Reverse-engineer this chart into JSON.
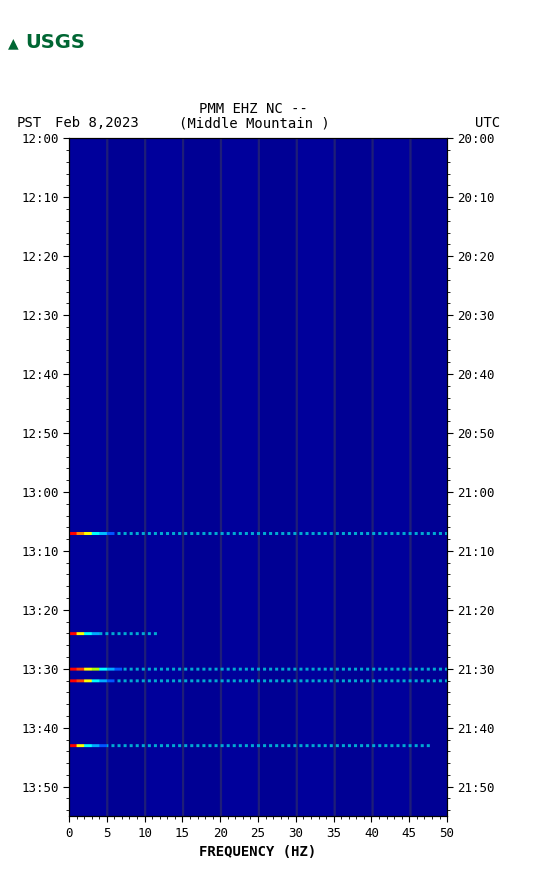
{
  "title_line1": "PMM EHZ NC --",
  "title_line2": "(Middle Mountain )",
  "left_label": "PST",
  "right_label": "UTC",
  "date_label": "Feb 8,2023",
  "xlabel": "FREQUENCY (HZ)",
  "freq_min": 0,
  "freq_max": 50,
  "bg_navy": [
    0,
    0,
    140
  ],
  "bg_navy2": [
    0,
    0,
    160
  ],
  "strip_color": [
    0,
    0,
    180
  ],
  "fig_bg": "#ffffff",
  "ytick_pst": [
    "12:00",
    "12:10",
    "12:20",
    "12:30",
    "12:40",
    "12:50",
    "13:00",
    "13:10",
    "13:20",
    "13:30",
    "13:40",
    "13:50"
  ],
  "ytick_utc": [
    "20:00",
    "20:10",
    "20:20",
    "20:30",
    "20:40",
    "20:50",
    "21:00",
    "21:10",
    "21:20",
    "21:30",
    "21:40",
    "21:50"
  ],
  "ytick_vals": [
    0,
    10,
    20,
    30,
    40,
    50,
    60,
    70,
    80,
    90,
    100,
    110
  ],
  "xtick_vals": [
    0,
    5,
    10,
    15,
    20,
    25,
    30,
    35,
    40,
    45,
    50
  ],
  "total_minutes": 115,
  "events": [
    {
      "t_min": 67,
      "colors": [
        "#ff0000",
        "#ff8800",
        "#ffff00",
        "#00ffff",
        "#00bbff",
        "#0055ff"
      ],
      "cyan_full": true,
      "thick": 1
    },
    {
      "t_min": 84,
      "colors": [
        "#ff0000",
        "#ffff00",
        "#00ffff",
        "#00aaff"
      ],
      "cyan_full": false,
      "cyan_ext": 12,
      "thick": 1
    },
    {
      "t_min": 90,
      "colors": [
        "#ff0000",
        "#ff4400",
        "#ffff00",
        "#aaff00",
        "#00ffff",
        "#00aaff",
        "#0055ff"
      ],
      "cyan_full": true,
      "thick": 1
    },
    {
      "t_min": 92,
      "colors": [
        "#ff0000",
        "#ff4400",
        "#ffff00",
        "#00ffff",
        "#00aaff",
        "#0055ff"
      ],
      "cyan_full": true,
      "thick": 1
    },
    {
      "t_min": 103,
      "colors": [
        "#ff0000",
        "#ffff00",
        "#00ffff",
        "#00aaff",
        "#0055ff"
      ],
      "cyan_full": false,
      "cyan_ext": 48,
      "thick": 1
    }
  ],
  "font_size": 10,
  "title_font_size": 10,
  "tick_font_size": 9
}
